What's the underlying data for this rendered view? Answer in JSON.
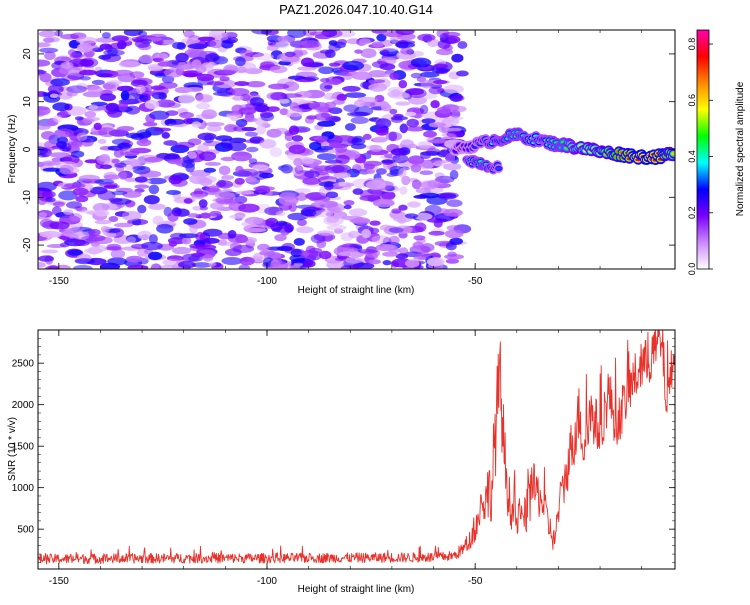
{
  "figure_title": "PAZ1.2026.047.10.40.G14",
  "colorbar": {
    "label": "Normalized spectral amplitude",
    "ticks": [
      "0.0",
      "0.2",
      "0.4",
      "0.6",
      "0.8"
    ],
    "tick_values": [
      0.0,
      0.2,
      0.4,
      0.6,
      0.8
    ],
    "range": [
      0.0,
      0.85
    ],
    "colors": [
      "#ffffff",
      "#cc88ff",
      "#7a00ff",
      "#0000ff",
      "#00ffff",
      "#00ff00",
      "#ffff00",
      "#ff8800",
      "#ff0000",
      "#ff00aa"
    ]
  },
  "chart_data": [
    {
      "type": "heatmap",
      "title": "PAZ1.2026.047.10.40.G14",
      "xlabel": "Height of straight line (km)",
      "ylabel": "Frequency (Hz)",
      "xlim": [
        -155,
        -2
      ],
      "ylim": [
        -25,
        25
      ],
      "xticks": [
        -150,
        -100,
        -50
      ],
      "xtick_labels": [
        "-150",
        "-100",
        "-50"
      ],
      "yticks": [
        -20,
        -10,
        0,
        10,
        20
      ],
      "ytick_labels": [
        "-20",
        "-10",
        "0",
        "10",
        "20"
      ],
      "noise_region": {
        "x_range": [
          -155,
          -53
        ],
        "freq_range": [
          -25,
          25
        ],
        "typical_amplitude": 0.15
      },
      "signal_track": {
        "x": [
          -55,
          -50,
          -45,
          -40,
          -35,
          -30,
          -25,
          -20,
          -15,
          -10,
          -5,
          -2
        ],
        "freq": [
          0,
          1,
          2,
          3,
          2,
          1,
          0.5,
          -0.5,
          -1,
          -1.5,
          -1.5,
          -0.5
        ],
        "amplitude": [
          0.25,
          0.3,
          0.4,
          0.45,
          0.38,
          0.45,
          0.55,
          0.6,
          0.7,
          0.8,
          0.75,
          0.6
        ]
      },
      "secondary_track": {
        "x": [
          -52,
          -48,
          -44
        ],
        "freq": [
          -2,
          -3,
          -4
        ],
        "amplitude": [
          0.35,
          0.45,
          0.3
        ]
      }
    },
    {
      "type": "line",
      "xlabel": "Height of straight line (km)",
      "ylabel": "SNR (10 * v/v)",
      "xlim": [
        -155,
        -2
      ],
      "ylim": [
        20,
        2900
      ],
      "xticks": [
        -150,
        -100,
        -50
      ],
      "xtick_labels": [
        "-150",
        "-100",
        "-50"
      ],
      "yticks": [
        500,
        1000,
        1500,
        2000,
        2500
      ],
      "ytick_labels": [
        "500",
        "1000",
        "1500",
        "2000",
        "2500"
      ],
      "series": [
        {
          "name": "SNR",
          "color": "#e8312a",
          "x": [
            -155,
            -140,
            -120,
            -100,
            -80,
            -60,
            -55,
            -52,
            -50,
            -48,
            -46,
            -45,
            -44,
            -43,
            -42,
            -41,
            -40,
            -38,
            -36,
            -34,
            -32,
            -31,
            -30,
            -28,
            -26,
            -25,
            -24,
            -22,
            -20,
            -18,
            -16,
            -14,
            -12,
            -10,
            -8,
            -6,
            -5,
            -4,
            -3,
            -2
          ],
          "y": [
            140,
            145,
            150,
            150,
            155,
            160,
            180,
            300,
            500,
            850,
            1000,
            1800,
            2300,
            1400,
            900,
            700,
            600,
            650,
            1000,
            850,
            500,
            350,
            700,
            1200,
            1700,
            1900,
            1500,
            1900,
            1650,
            2150,
            1750,
            2050,
            2300,
            2450,
            2550,
            2750,
            2700,
            2000,
            2400,
            2600
          ],
          "noise_amplitude": [
            60,
            60,
            60,
            60,
            60,
            60,
            60,
            100,
            150,
            300,
            400,
            600,
            550,
            450,
            300,
            250,
            200,
            250,
            300,
            250,
            180,
            150,
            200,
            300,
            400,
            350,
            350,
            350,
            300,
            350,
            300,
            300,
            300,
            300,
            300,
            300,
            300,
            300,
            250,
            200
          ]
        }
      ]
    }
  ]
}
